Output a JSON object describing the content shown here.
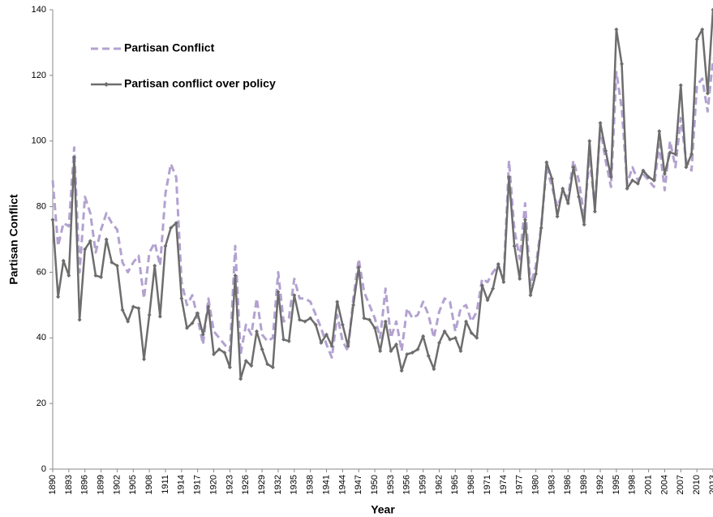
{
  "chart_data": {
    "type": "line",
    "y_label": "Partisan Conflict",
    "x_label": "Year",
    "x": [
      1890,
      1891,
      1892,
      1893,
      1894,
      1895,
      1896,
      1897,
      1898,
      1899,
      1900,
      1901,
      1902,
      1903,
      1904,
      1905,
      1906,
      1907,
      1908,
      1909,
      1910,
      1911,
      1912,
      1913,
      1914,
      1915,
      1916,
      1917,
      1918,
      1919,
      1920,
      1921,
      1922,
      1923,
      1924,
      1925,
      1926,
      1927,
      1928,
      1929,
      1930,
      1931,
      1932,
      1933,
      1934,
      1935,
      1936,
      1937,
      1938,
      1939,
      1940,
      1941,
      1942,
      1943,
      1944,
      1945,
      1946,
      1947,
      1948,
      1949,
      1950,
      1951,
      1952,
      1953,
      1954,
      1955,
      1956,
      1957,
      1958,
      1959,
      1960,
      1961,
      1962,
      1963,
      1964,
      1965,
      1966,
      1967,
      1968,
      1969,
      1970,
      1971,
      1972,
      1973,
      1974,
      1975,
      1976,
      1977,
      1978,
      1979,
      1980,
      1981,
      1982,
      1983,
      1984,
      1985,
      1986,
      1987,
      1988,
      1989,
      1990,
      1991,
      1992,
      1993,
      1994,
      1995,
      1996,
      1997,
      1998,
      1999,
      2000,
      2001,
      2002,
      2003,
      2004,
      2005,
      2006,
      2007,
      2008,
      2009,
      2010,
      2011,
      2012,
      2013
    ],
    "series": [
      {
        "name": "Partisan Conflict",
        "color": "#b3a2d0",
        "dashed": true,
        "markers": false,
        "values": [
          88,
          68,
          75,
          74,
          98,
          60,
          83,
          78,
          66,
          73,
          78,
          75,
          73,
          63,
          60,
          63,
          65,
          52,
          66,
          69,
          62,
          84,
          93,
          89,
          57,
          50,
          53,
          46,
          38,
          52,
          42,
          40,
          38,
          36,
          68,
          35,
          44,
          41,
          52,
          41,
          39,
          40,
          60,
          45,
          46,
          58,
          52,
          52,
          51,
          47,
          43,
          38,
          34,
          47,
          39,
          36,
          52,
          64,
          54,
          50,
          46,
          40,
          55,
          40,
          45,
          36,
          49,
          46,
          47,
          51,
          47,
          40,
          48,
          52,
          51,
          42,
          49,
          50,
          45,
          48,
          58,
          57,
          60,
          62,
          58,
          94,
          73,
          64,
          81,
          56,
          62,
          74,
          92,
          86,
          80,
          84,
          83,
          94,
          88,
          77,
          95,
          80,
          104,
          94,
          86,
          121,
          110,
          87,
          92,
          88,
          90,
          88,
          86,
          99,
          85,
          100,
          92,
          107,
          94,
          91,
          117,
          119,
          109,
          125
        ]
      },
      {
        "name": "Partisan conflict over policy",
        "color": "#6d6d6d",
        "dashed": false,
        "markers": true,
        "values": [
          76,
          52.5,
          63.5,
          59,
          95,
          45.5,
          67,
          69.5,
          59,
          58.5,
          70,
          63,
          62,
          48.5,
          45,
          49.5,
          49,
          33.5,
          47,
          62,
          46.5,
          68,
          73.5,
          75,
          52,
          43,
          44.5,
          47.5,
          41,
          49.5,
          35,
          36.5,
          35.5,
          31,
          59,
          27.5,
          33,
          31.5,
          42,
          36.5,
          32,
          31,
          54,
          39.5,
          39,
          53,
          45.5,
          45,
          46,
          44,
          38.5,
          41,
          37.5,
          51,
          44,
          37.5,
          50,
          61.5,
          46,
          45.5,
          43,
          36,
          45,
          36,
          38,
          30,
          35,
          35.5,
          36.5,
          40.5,
          34.5,
          30.5,
          38.5,
          42,
          39.5,
          40,
          36,
          45,
          41.5,
          40,
          56,
          51.5,
          55,
          62.5,
          57,
          89,
          68,
          58,
          76,
          53,
          59.5,
          73.5,
          93.5,
          88.5,
          77,
          85.5,
          81,
          92,
          83,
          74.5,
          100,
          78.5,
          105.5,
          97,
          89,
          134,
          123.5,
          85.5,
          88,
          87,
          91,
          89,
          88,
          103,
          90,
          96.5,
          96,
          117,
          92,
          96,
          131,
          134,
          114.5,
          140
        ]
      }
    ],
    "xlim": [
      1890,
      2013
    ],
    "ylim": [
      0,
      140
    ],
    "xticks": [
      1890,
      1893,
      1896,
      1899,
      1902,
      1905,
      1908,
      1911,
      1914,
      1917,
      1920,
      1923,
      1926,
      1929,
      1932,
      1935,
      1938,
      1941,
      1944,
      1947,
      1950,
      1953,
      1956,
      1959,
      1962,
      1965,
      1968,
      1971,
      1974,
      1977,
      1980,
      1983,
      1986,
      1989,
      1992,
      1995,
      1998,
      2001,
      2004,
      2007,
      2010,
      2013
    ],
    "yticks": [
      0,
      20,
      40,
      60,
      80,
      100,
      120,
      140
    ],
    "grid": false,
    "legend": "upper left"
  }
}
